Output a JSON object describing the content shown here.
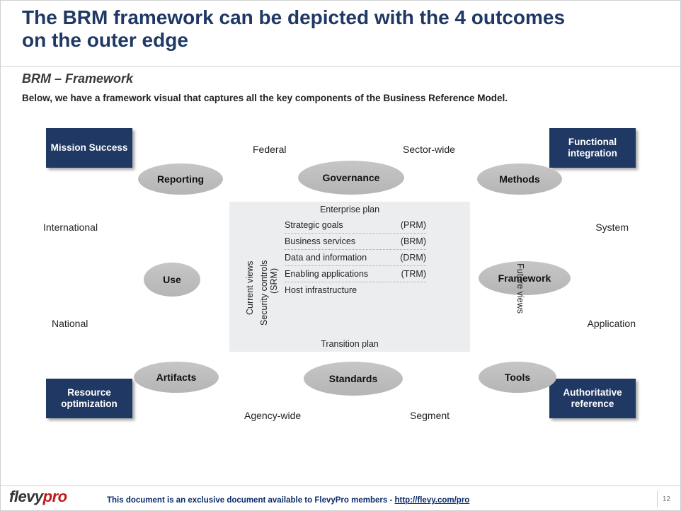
{
  "page": {
    "title_line1": "The BRM framework can be depicted with the 4 outcomes",
    "title_line2": "on the outer edge",
    "subtitle": "BRM – Framework",
    "description": "Below, we have a framework visual that captures all the key components of the Business Reference Model.",
    "title_color": "#1f3864",
    "page_number": "12"
  },
  "footer": {
    "logo_flevy": "flevy",
    "logo_pro": "pro",
    "text_prefix": "This document is an exclusive document available to ",
    "text_bold": "FlevyPro",
    "text_suffix": " members - ",
    "link_text": "http://flevy.com/pro"
  },
  "colors": {
    "box_bg": "#1f3864",
    "box_text": "#ffffff",
    "bubble_bg": "#bfbfbf",
    "panel_bg": "#ecedee",
    "label_color": "#222222",
    "background": "#ffffff",
    "logo_pro": "#c01818"
  },
  "outcomes": {
    "top_left": "Mission Success",
    "top_right": "Functional integration",
    "bottom_left": "Resource optimization",
    "bottom_right": "Authoritative reference"
  },
  "bubbles": {
    "reporting": "Reporting",
    "governance": "Governance",
    "methods": "Methods",
    "use": "Use",
    "framework": "Framework",
    "artifacts": "Artifacts",
    "standards": "Standards",
    "tools": "Tools"
  },
  "connectors": {
    "federal": "Federal",
    "sector_wide": "Sector-wide",
    "international": "International",
    "system": "System",
    "national": "National",
    "application": "Application",
    "agency_wide": "Agency-wide",
    "segment": "Segment"
  },
  "center": {
    "top_label": "Enterprise plan",
    "bottom_label": "Transition plan",
    "left_label_1": "Current views",
    "left_label_2": "Security controls",
    "left_label_3": "(SRM)",
    "right_label": "Future views",
    "rows": [
      {
        "name": "Strategic goals",
        "code": "(PRM)"
      },
      {
        "name": "Business services",
        "code": "(BRM)"
      },
      {
        "name": "Data and information",
        "code": "(DRM)"
      },
      {
        "name": "Enabling applications",
        "code": "(TRM)"
      },
      {
        "name": "Host infrastructure",
        "code": ""
      }
    ]
  }
}
